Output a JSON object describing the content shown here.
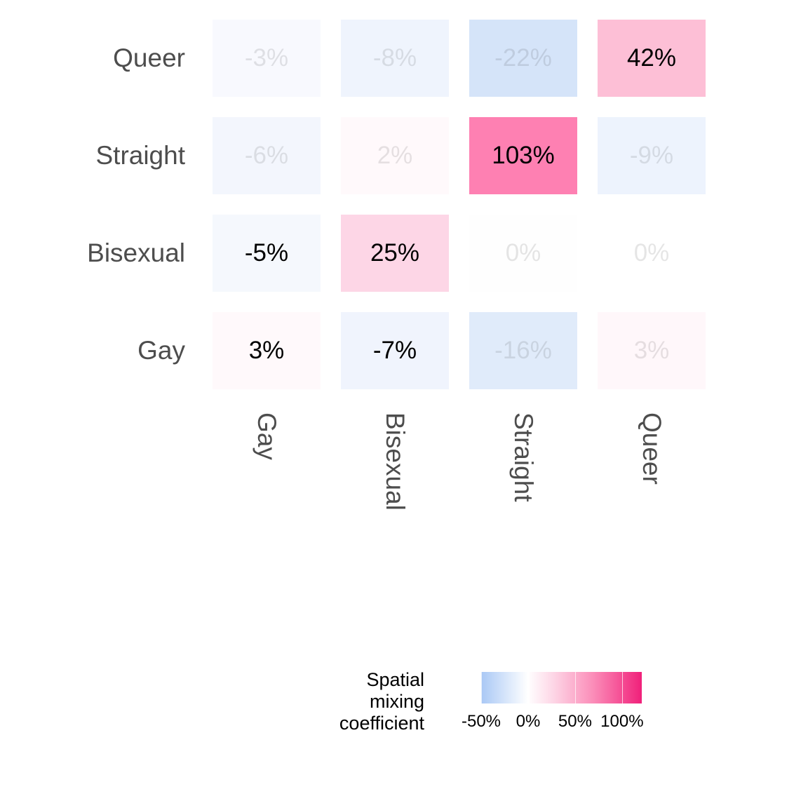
{
  "chart_data": {
    "type": "heatmap",
    "x_categories": [
      "Gay",
      "Bisexual",
      "Straight",
      "Queer"
    ],
    "y_categories": [
      "Queer",
      "Straight",
      "Bisexual",
      "Gay"
    ],
    "cells": [
      [
        {
          "value": -3,
          "label": "-3%",
          "significant": false,
          "color": "#f8f9fe"
        },
        {
          "value": -8,
          "label": "-8%",
          "significant": false,
          "color": "#eff4fd"
        },
        {
          "value": -22,
          "label": "-22%",
          "significant": false,
          "color": "#d5e4f9"
        },
        {
          "value": 42,
          "label": "42%",
          "significant": true,
          "color": "#fdbfd6"
        }
      ],
      [
        {
          "value": -6,
          "label": "-6%",
          "significant": false,
          "color": "#f3f6fd"
        },
        {
          "value": 2,
          "label": "2%",
          "significant": false,
          "color": "#fff9fb"
        },
        {
          "value": 103,
          "label": "103%",
          "significant": true,
          "color": "#fe80b2"
        },
        {
          "value": -9,
          "label": "-9%",
          "significant": false,
          "color": "#edf3fd"
        }
      ],
      [
        {
          "value": -5,
          "label": "-5%",
          "significant": true,
          "color": "#f5f8fd"
        },
        {
          "value": 25,
          "label": "25%",
          "significant": true,
          "color": "#fdd6e6"
        },
        {
          "value": 0,
          "label": "0%",
          "significant": false,
          "color": "#fefefe"
        },
        {
          "value": 0,
          "label": "0%",
          "significant": false,
          "color": "#ffffff"
        }
      ],
      [
        {
          "value": 3,
          "label": "3%",
          "significant": true,
          "color": "#fff9fb"
        },
        {
          "value": -7,
          "label": "-7%",
          "significant": true,
          "color": "#f0f4fd"
        },
        {
          "value": -16,
          "label": "-16%",
          "significant": false,
          "color": "#e0ebfa"
        },
        {
          "value": 3,
          "label": "3%",
          "significant": false,
          "color": "#fff7fa"
        }
      ]
    ],
    "legend": {
      "title": [
        "Spatial",
        "mixing",
        "coefficient"
      ],
      "ticks": [
        -50,
        0,
        50,
        100
      ],
      "tick_labels": [
        "-50%",
        "0%",
        "50%",
        "100%"
      ],
      "range": [
        -50,
        121
      ],
      "low_color": "#a9c8f5",
      "mid_color": "#ffffff",
      "high_color": "#f0207a",
      "placement": "bottom"
    }
  }
}
